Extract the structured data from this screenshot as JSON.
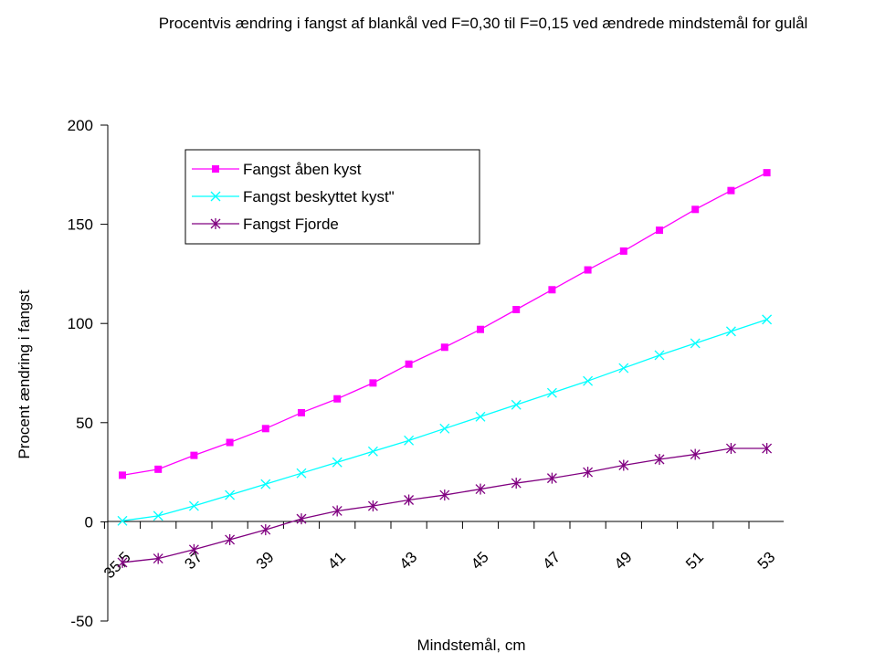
{
  "chart_data": {
    "type": "line",
    "title": "Procentvis ændring i fangst af blankål ved F=0,30 til F=0,15 ved ændrede mindstemål for gulål",
    "xlabel": "Mindstemål, cm",
    "ylabel": "Procent ændring i fangst",
    "x": [
      35.5,
      36,
      37,
      38,
      39,
      40,
      41,
      42,
      43,
      44,
      45,
      46,
      47,
      48,
      49,
      50,
      51,
      52,
      53
    ],
    "x_tick_labels": [
      "35,5",
      "37",
      "39",
      "41",
      "43",
      "45",
      "47",
      "49",
      "51",
      "53"
    ],
    "ylim": [
      -50,
      200
    ],
    "y_ticks": [
      -50,
      0,
      50,
      100,
      150,
      200
    ],
    "grid": false,
    "legend_position": "top-left",
    "series": [
      {
        "name": "Fangst åben kyst",
        "color": "#ff00ff",
        "marker": "square",
        "values": [
          23.5,
          26.5,
          33.5,
          40,
          47,
          55,
          62,
          70,
          79.5,
          88,
          97,
          107,
          117,
          127,
          136.5,
          147,
          157.5,
          167,
          176
        ]
      },
      {
        "name": "Fangst beskyttet kyst\"",
        "color": "#00ffff",
        "marker": "x",
        "values": [
          0.5,
          3,
          8,
          13.5,
          19,
          24.5,
          30,
          35.5,
          41,
          47,
          53,
          59,
          65,
          71,
          77.5,
          84,
          90,
          96,
          102
        ]
      },
      {
        "name": "Fangst Fjorde",
        "color": "#800080",
        "marker": "star",
        "values": [
          -20.5,
          -18.5,
          -14,
          -9,
          -4,
          1.5,
          5.5,
          8,
          11,
          13.5,
          16.5,
          19.5,
          22,
          25,
          28.5,
          31.5,
          34,
          37,
          37
        ]
      }
    ]
  }
}
